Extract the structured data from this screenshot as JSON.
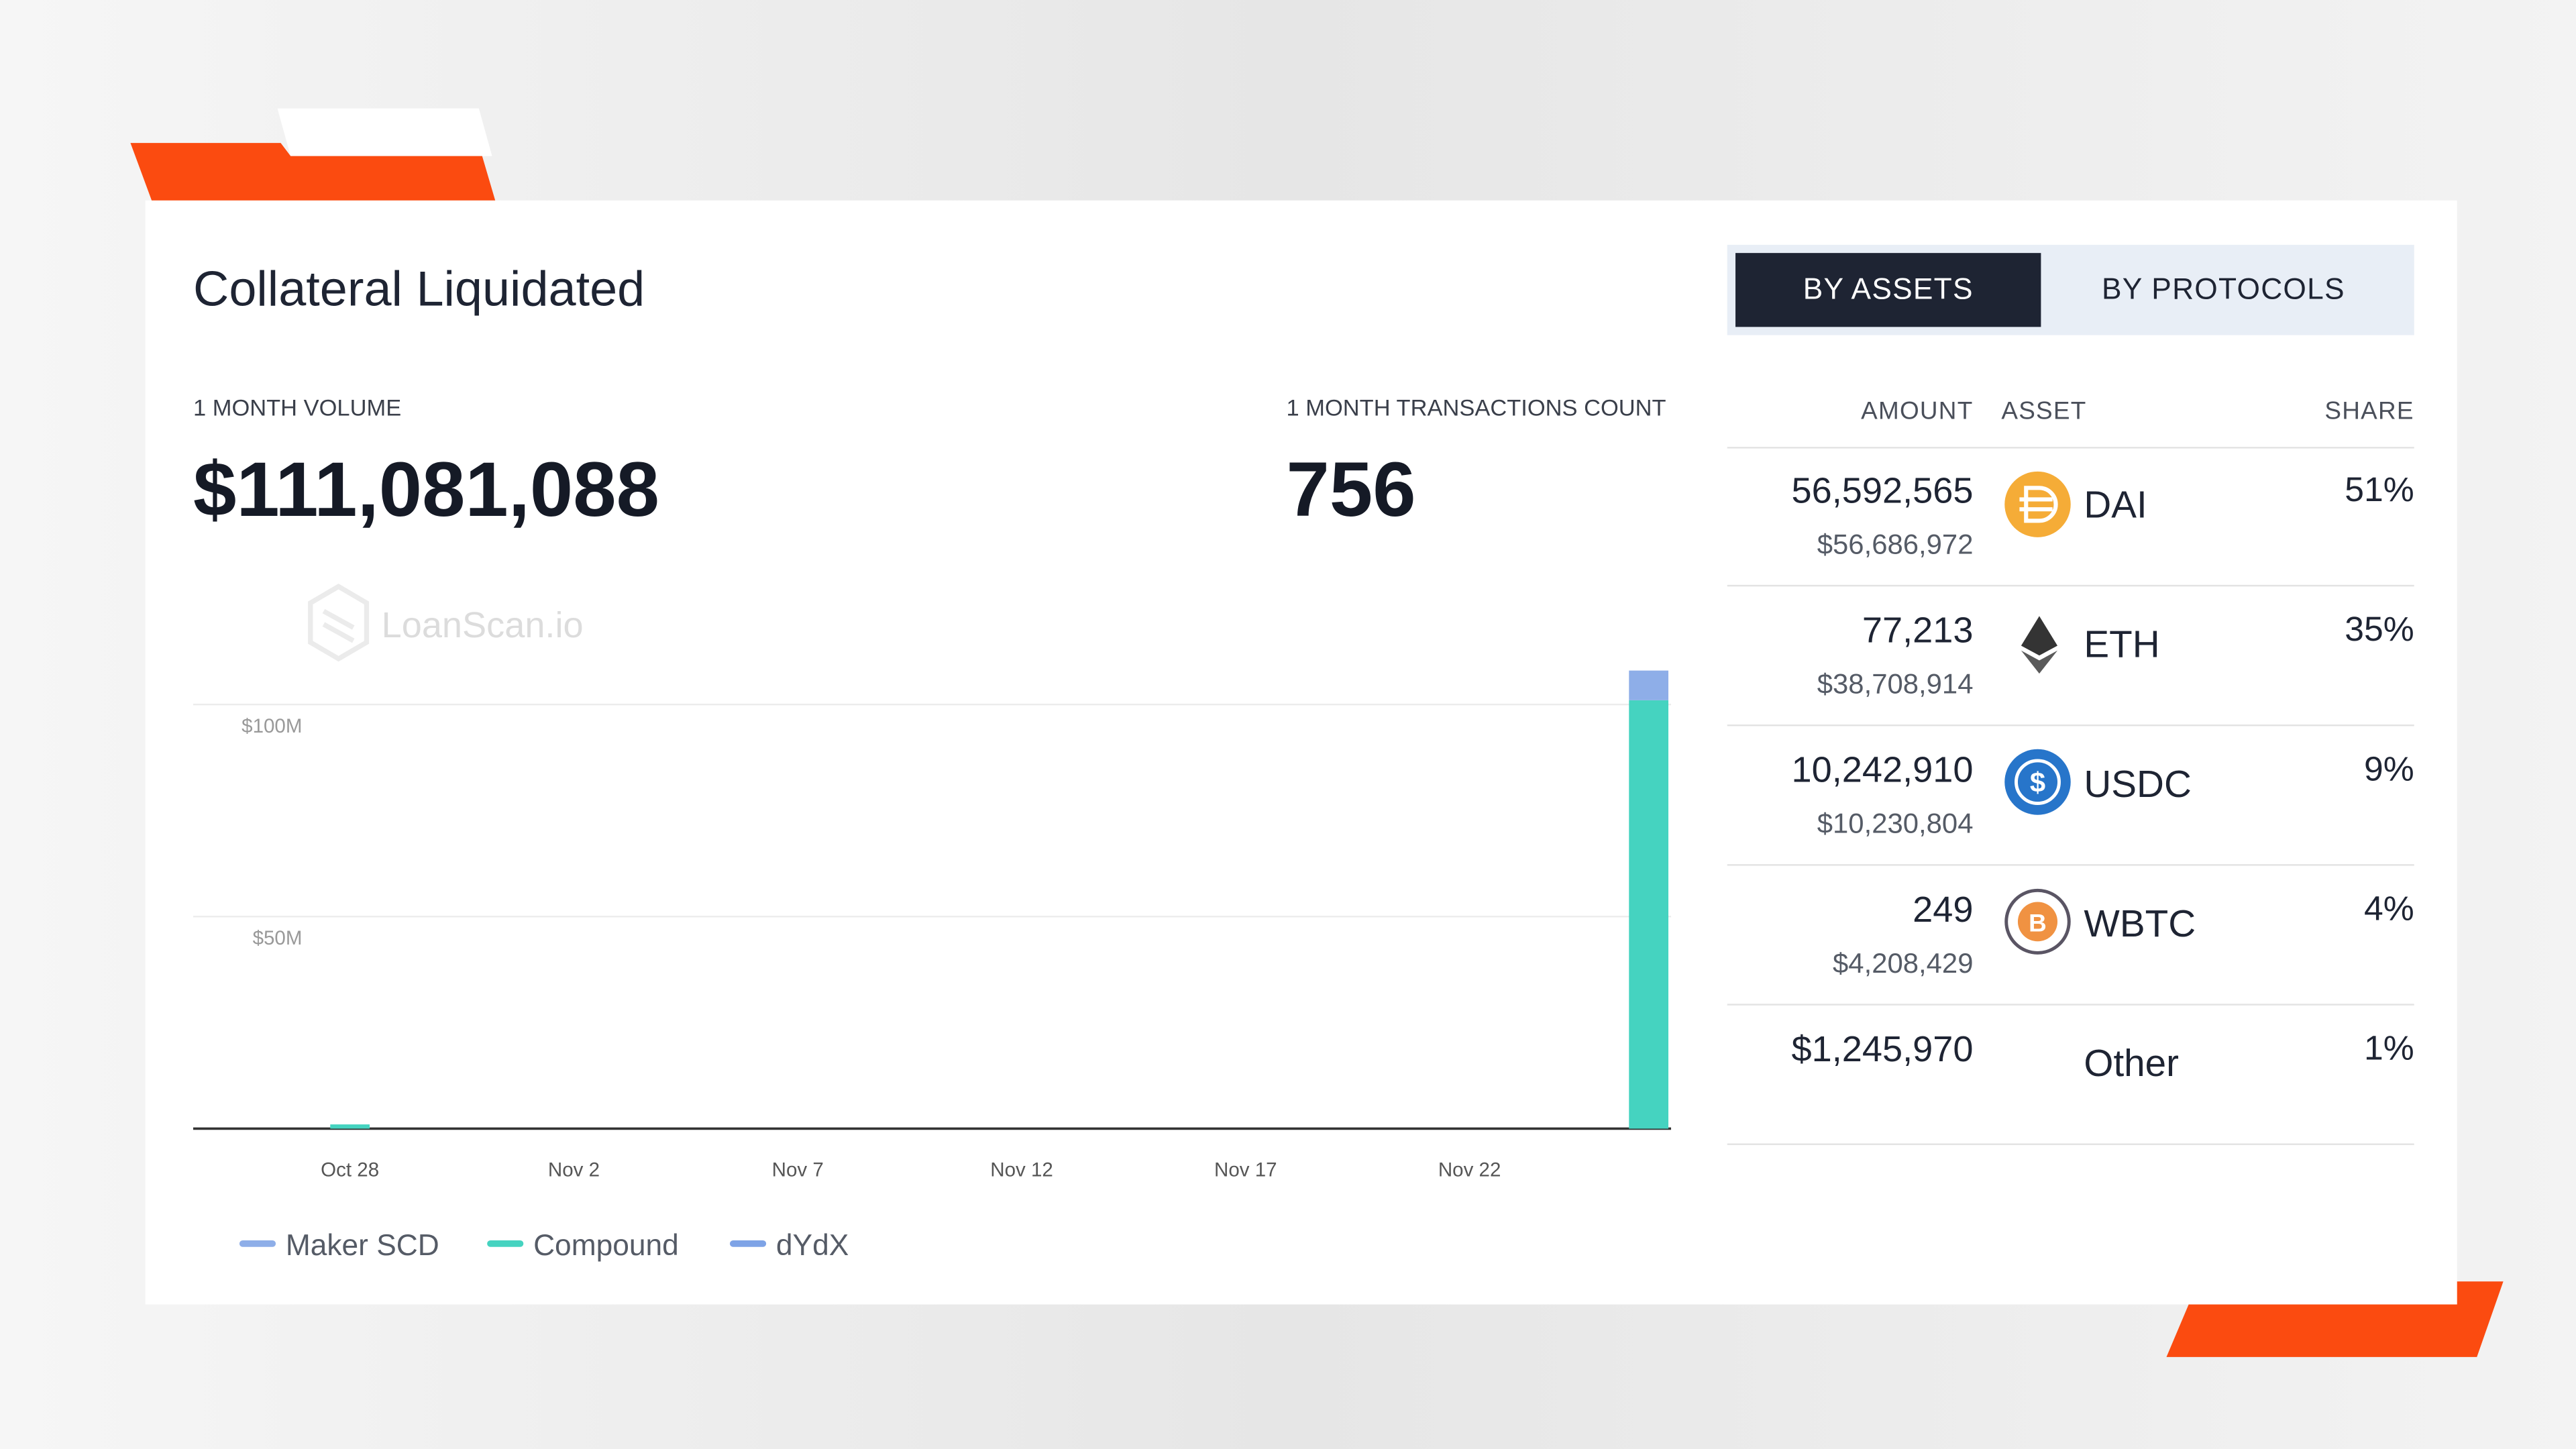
{
  "dashboard": {
    "title": "Collateral Liquidated",
    "volume_label": "1 MONTH VOLUME",
    "volume_value": "$111,081,088",
    "tx_label": "1 MONTH TRANSACTIONS COUNT",
    "tx_value": "756",
    "watermark": "LoanScan.io"
  },
  "chart_data": {
    "type": "bar",
    "stacked": true,
    "categories": [
      null,
      null,
      null,
      "Oct 28",
      null,
      null,
      null,
      null,
      "Nov 2",
      null,
      null,
      null,
      null,
      "Nov 7",
      null,
      null,
      null,
      null,
      "Nov 12",
      null,
      null,
      null,
      null,
      "Nov 17",
      null,
      null,
      null,
      null,
      "Nov 22",
      null,
      null,
      null,
      null
    ],
    "series": [
      {
        "name": "Compound",
        "color": "#45d3c0",
        "values": [
          0,
          0,
          0,
          1,
          0,
          0,
          0,
          0,
          0,
          0,
          0,
          0,
          0,
          0,
          0,
          0,
          0,
          0,
          0,
          0,
          0,
          0,
          0,
          0,
          0,
          0,
          0,
          0,
          0,
          0,
          0,
          0,
          101
        ]
      },
      {
        "name": "Maker SCD",
        "color": "#8eaee8",
        "values": [
          0,
          0,
          0,
          0,
          0,
          0,
          0,
          0,
          0,
          0,
          0,
          0,
          0,
          0,
          0,
          0,
          0,
          0,
          0,
          0,
          0,
          0,
          0,
          0,
          0,
          0,
          0,
          0,
          0,
          0,
          0,
          0,
          7
        ]
      },
      {
        "name": "dYdX",
        "color": "#7ea3e6",
        "values": [
          0,
          0,
          0,
          0,
          0,
          0,
          0,
          0,
          0,
          0,
          0,
          0,
          0,
          0,
          0,
          0,
          0,
          0,
          0,
          0,
          0,
          0,
          0,
          0,
          0,
          0,
          0,
          0,
          0,
          0,
          0,
          0,
          0
        ]
      }
    ],
    "legend_order": [
      "Maker SCD",
      "Compound",
      "dYdX"
    ],
    "ylim": [
      0,
      110
    ],
    "yticks": [
      {
        "value": 50,
        "label": "$50M"
      },
      {
        "value": 100,
        "label": "$100M"
      }
    ],
    "grid": true
  },
  "tabs": [
    "BY ASSETS",
    "BY PROTOCOLS"
  ],
  "table": {
    "headers": [
      "AMOUNT",
      "ASSET",
      "SHARE"
    ],
    "rows": [
      {
        "amount": "56,592,565",
        "usd": "$56,686,972",
        "asset": "DAI",
        "share": "51%"
      },
      {
        "amount": "77,213",
        "usd": "$38,708,914",
        "asset": "ETH",
        "share": "35%"
      },
      {
        "amount": "10,242,910",
        "usd": "$10,230,804",
        "asset": "USDC",
        "share": "9%"
      },
      {
        "amount": "249",
        "usd": "$4,208,429",
        "asset": "WBTC",
        "share": "4%"
      },
      {
        "amount": "$1,245,970",
        "asset": "Other",
        "share": "1%"
      }
    ]
  }
}
